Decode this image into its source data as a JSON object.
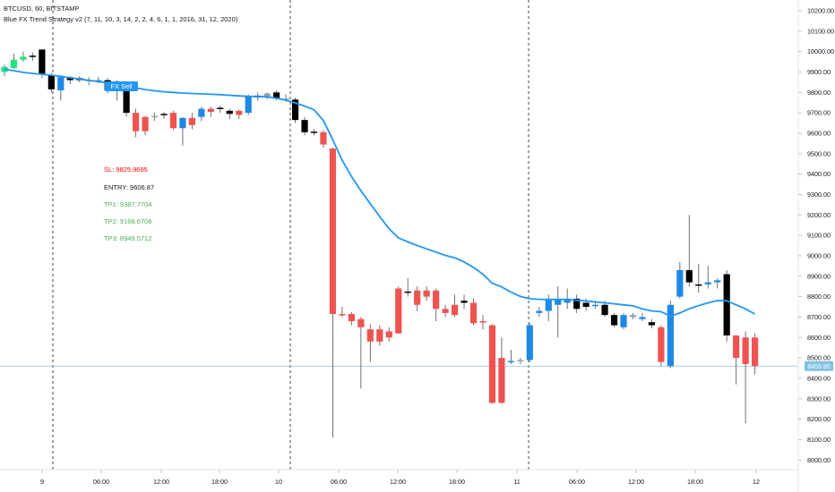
{
  "header": {
    "line1": "BTCUSD, 60, BITSTAMP",
    "line2": "Blue FX Trend Strategy v2 (7, 11, 10, 3, 14, 2, 2, 4, 6, 1, 1, 2016, 31, 12, 2020)"
  },
  "signal": {
    "label": "FX Sell",
    "sl": "SL: 9825.9695",
    "entry": "ENTRY: 9606.87",
    "tp1": "TP1: 9387.7704",
    "tp2": "TP2: 9168.6708",
    "tp3": "TP3: 8949.5712"
  },
  "price_label": "8459.85",
  "colors": {
    "up_blue": "#1e88e5",
    "up_green": "#26e07f",
    "down_red": "#ef5350",
    "neutral": "#000000",
    "trend_line": "#2196f3",
    "sl": "#ff0000",
    "tp": "#4caf50",
    "price_line": "#7fc3e0"
  },
  "chart_data": {
    "type": "candlestick",
    "symbol": "BTCUSD",
    "timeframe": "60",
    "exchange": "BITSTAMP",
    "ylim": [
      7950,
      10240
    ],
    "y_ticks": [
      "10200.00",
      "10100.00",
      "10000.00",
      "9900.00",
      "9800.00",
      "9700.00",
      "9600.00",
      "9500.00",
      "9400.00",
      "9300.00",
      "9200.00",
      "9100.00",
      "9000.00",
      "8900.00",
      "8800.00",
      "8700.00",
      "8600.00",
      "8500.00",
      "8400.00",
      "8300.00",
      "8200.00",
      "8100.00",
      "8000.00"
    ],
    "x_ticks": [
      "9",
      "06:00",
      "12:00",
      "18:00",
      "10",
      "06:00",
      "12:00",
      "18:00",
      "11",
      "06:00",
      "12:00",
      "18:00",
      "12"
    ],
    "day_separators": [
      "9",
      "10",
      "11"
    ],
    "current_price": 8459.85,
    "candles": [
      {
        "o": 9900,
        "h": 9935,
        "l": 9880,
        "c": 9925,
        "t": "g"
      },
      {
        "o": 9920,
        "h": 9990,
        "l": 9915,
        "c": 9960,
        "t": "g"
      },
      {
        "o": 9960,
        "h": 10000,
        "l": 9950,
        "c": 9975,
        "t": "g"
      },
      {
        "o": 9975,
        "h": 9995,
        "l": 9955,
        "c": 9980,
        "t": "n"
      },
      {
        "o": 10010,
        "h": 10010,
        "l": 9870,
        "c": 9890,
        "t": "n"
      },
      {
        "o": 9885,
        "h": 9895,
        "l": 9800,
        "c": 9815,
        "t": "n"
      },
      {
        "o": 9810,
        "h": 9880,
        "l": 9760,
        "c": 9875,
        "t": "b"
      },
      {
        "o": 9875,
        "h": 9880,
        "l": 9840,
        "c": 9860,
        "t": "n"
      },
      {
        "o": 9870,
        "h": 9880,
        "l": 9850,
        "c": 9860,
        "t": "n"
      },
      {
        "o": 9860,
        "h": 9875,
        "l": 9835,
        "c": 9862,
        "t": "b"
      },
      {
        "o": 9860,
        "h": 9875,
        "l": 9845,
        "c": 9858,
        "t": "b"
      },
      {
        "o": 9860,
        "h": 9870,
        "l": 9795,
        "c": 9810,
        "t": "n"
      },
      {
        "o": 9810,
        "h": 9860,
        "l": 9760,
        "c": 9850,
        "t": "b"
      },
      {
        "o": 9825,
        "h": 9830,
        "l": 9680,
        "c": 9700,
        "t": "n"
      },
      {
        "o": 9700,
        "h": 9720,
        "l": 9580,
        "c": 9610,
        "t": "r"
      },
      {
        "o": 9610,
        "h": 9685,
        "l": 9590,
        "c": 9680,
        "t": "r"
      },
      {
        "o": 9680,
        "h": 9700,
        "l": 9660,
        "c": 9685,
        "t": "m"
      },
      {
        "o": 9695,
        "h": 9705,
        "l": 9670,
        "c": 9690,
        "t": "n"
      },
      {
        "o": 9700,
        "h": 9710,
        "l": 9615,
        "c": 9625,
        "t": "r"
      },
      {
        "o": 9625,
        "h": 9680,
        "l": 9540,
        "c": 9675,
        "t": "b"
      },
      {
        "o": 9640,
        "h": 9700,
        "l": 9620,
        "c": 9675,
        "t": "r"
      },
      {
        "o": 9680,
        "h": 9730,
        "l": 9660,
        "c": 9720,
        "t": "b"
      },
      {
        "o": 9720,
        "h": 9730,
        "l": 9680,
        "c": 9705,
        "t": "r"
      },
      {
        "o": 9720,
        "h": 9735,
        "l": 9700,
        "c": 9725,
        "t": "n"
      },
      {
        "o": 9710,
        "h": 9720,
        "l": 9670,
        "c": 9695,
        "t": "n"
      },
      {
        "o": 9690,
        "h": 9715,
        "l": 9670,
        "c": 9710,
        "t": "r"
      },
      {
        "o": 9700,
        "h": 9790,
        "l": 9690,
        "c": 9780,
        "t": "b"
      },
      {
        "o": 9775,
        "h": 9800,
        "l": 9760,
        "c": 9785,
        "t": "b"
      },
      {
        "o": 9780,
        "h": 9800,
        "l": 9765,
        "c": 9795,
        "t": "m"
      },
      {
        "o": 9800,
        "h": 9810,
        "l": 9760,
        "c": 9770,
        "t": "n"
      },
      {
        "o": 9770,
        "h": 9790,
        "l": 9755,
        "c": 9765,
        "t": "m"
      },
      {
        "o": 9765,
        "h": 9775,
        "l": 9650,
        "c": 9665,
        "t": "n"
      },
      {
        "o": 9665,
        "h": 9680,
        "l": 9590,
        "c": 9605,
        "t": "n"
      },
      {
        "o": 9605,
        "h": 9620,
        "l": 9590,
        "c": 9608,
        "t": "n"
      },
      {
        "o": 9605,
        "h": 9615,
        "l": 9530,
        "c": 9545,
        "t": "r"
      },
      {
        "o": 9525,
        "h": 9530,
        "l": 8110,
        "c": 8715,
        "t": "r"
      },
      {
        "o": 8715,
        "h": 8750,
        "l": 8700,
        "c": 8710,
        "t": "r"
      },
      {
        "o": 8715,
        "h": 8725,
        "l": 8660,
        "c": 8680,
        "t": "r"
      },
      {
        "o": 8690,
        "h": 8700,
        "l": 8350,
        "c": 8650,
        "t": "r"
      },
      {
        "o": 8640,
        "h": 8665,
        "l": 8480,
        "c": 8580,
        "t": "r"
      },
      {
        "o": 8640,
        "h": 8660,
        "l": 8560,
        "c": 8580,
        "t": "r"
      },
      {
        "o": 8630,
        "h": 8650,
        "l": 8580,
        "c": 8600,
        "t": "r"
      },
      {
        "o": 8840,
        "h": 8850,
        "l": 8620,
        "c": 8620,
        "t": "r"
      },
      {
        "o": 8820,
        "h": 8890,
        "l": 8800,
        "c": 8825,
        "t": "n"
      },
      {
        "o": 8830,
        "h": 8850,
        "l": 8730,
        "c": 8760,
        "t": "r"
      },
      {
        "o": 8830,
        "h": 8850,
        "l": 8780,
        "c": 8800,
        "t": "r"
      },
      {
        "o": 8830,
        "h": 8840,
        "l": 8680,
        "c": 8740,
        "t": "r"
      },
      {
        "o": 8740,
        "h": 8760,
        "l": 8700,
        "c": 8720,
        "t": "r"
      },
      {
        "o": 8760,
        "h": 8810,
        "l": 8700,
        "c": 8710,
        "t": "r"
      },
      {
        "o": 8780,
        "h": 8810,
        "l": 8740,
        "c": 8770,
        "t": "n"
      },
      {
        "o": 8770,
        "h": 8790,
        "l": 8660,
        "c": 8670,
        "t": "r"
      },
      {
        "o": 8680,
        "h": 8710,
        "l": 8640,
        "c": 8680,
        "t": "r"
      },
      {
        "o": 8660,
        "h": 8665,
        "l": 8275,
        "c": 8280,
        "t": "r"
      },
      {
        "o": 8500,
        "h": 8600,
        "l": 8275,
        "c": 8280,
        "t": "r"
      },
      {
        "o": 8480,
        "h": 8540,
        "l": 8470,
        "c": 8485,
        "t": "b"
      },
      {
        "o": 8485,
        "h": 8500,
        "l": 8470,
        "c": 8490,
        "t": "m"
      },
      {
        "o": 8490,
        "h": 8670,
        "l": 8480,
        "c": 8660,
        "t": "b"
      },
      {
        "o": 8720,
        "h": 8750,
        "l": 8700,
        "c": 8730,
        "t": "b"
      },
      {
        "o": 8730,
        "h": 8810,
        "l": 8680,
        "c": 8790,
        "t": "b"
      },
      {
        "o": 8760,
        "h": 8850,
        "l": 8600,
        "c": 8790,
        "t": "b"
      },
      {
        "o": 8790,
        "h": 8840,
        "l": 8740,
        "c": 8770,
        "t": "b"
      },
      {
        "o": 8790,
        "h": 8810,
        "l": 8720,
        "c": 8740,
        "t": "n"
      },
      {
        "o": 8770,
        "h": 8790,
        "l": 8730,
        "c": 8750,
        "t": "n"
      },
      {
        "o": 8760,
        "h": 8780,
        "l": 8740,
        "c": 8760,
        "t": "b"
      },
      {
        "o": 8760,
        "h": 8780,
        "l": 8700,
        "c": 8710,
        "t": "n"
      },
      {
        "o": 8710,
        "h": 8720,
        "l": 8650,
        "c": 8660,
        "t": "n"
      },
      {
        "o": 8650,
        "h": 8720,
        "l": 8640,
        "c": 8710,
        "t": "b"
      },
      {
        "o": 8710,
        "h": 8720,
        "l": 8690,
        "c": 8700,
        "t": "m"
      },
      {
        "o": 8700,
        "h": 8720,
        "l": 8680,
        "c": 8690,
        "t": "b"
      },
      {
        "o": 8675,
        "h": 8690,
        "l": 8645,
        "c": 8660,
        "t": "n"
      },
      {
        "o": 8650,
        "h": 8660,
        "l": 8460,
        "c": 8480,
        "t": "r"
      },
      {
        "o": 8460,
        "h": 8780,
        "l": 8450,
        "c": 8760,
        "t": "b"
      },
      {
        "o": 8800,
        "h": 8970,
        "l": 8790,
        "c": 8930,
        "t": "b"
      },
      {
        "o": 8930,
        "h": 9200,
        "l": 8850,
        "c": 8870,
        "t": "n"
      },
      {
        "o": 8860,
        "h": 8960,
        "l": 8820,
        "c": 8860,
        "t": "n"
      },
      {
        "o": 8860,
        "h": 8950,
        "l": 8840,
        "c": 8870,
        "t": "b"
      },
      {
        "o": 8870,
        "h": 8890,
        "l": 8840,
        "c": 8880,
        "t": "b"
      },
      {
        "o": 8910,
        "h": 8930,
        "l": 8580,
        "c": 8610,
        "t": "n"
      },
      {
        "o": 8610,
        "h": 8610,
        "l": 8370,
        "c": 8500,
        "t": "r"
      },
      {
        "o": 8600,
        "h": 8630,
        "l": 8180,
        "c": 8470,
        "t": "r"
      },
      {
        "o": 8600,
        "h": 8620,
        "l": 8420,
        "c": 8460,
        "t": "r"
      }
    ],
    "trend_line": [
      9915,
      9906,
      9898,
      9893,
      9889,
      9884,
      9879,
      9872,
      9866,
      9859,
      9853,
      9846,
      9839,
      9830,
      9822,
      9814,
      9808,
      9803,
      9800,
      9797,
      9795,
      9793,
      9791,
      9789,
      9786,
      9783,
      9781,
      9780,
      9778,
      9772,
      9762,
      9749,
      9733,
      9715,
      9662,
      9568,
      9468,
      9388,
      9318,
      9255,
      9192,
      9132,
      9088,
      9068,
      9050,
      9034,
      9018,
      9002,
      8990,
      8970,
      8943,
      8910,
      8866,
      8848,
      8822,
      8801,
      8790,
      8787,
      8786,
      8786,
      8786,
      8782,
      8779,
      8774,
      8770,
      8765,
      8760,
      8755,
      8740,
      8730,
      8726,
      8705,
      8720,
      8741,
      8756,
      8770,
      8781,
      8780,
      8760,
      8740,
      8715
    ]
  }
}
